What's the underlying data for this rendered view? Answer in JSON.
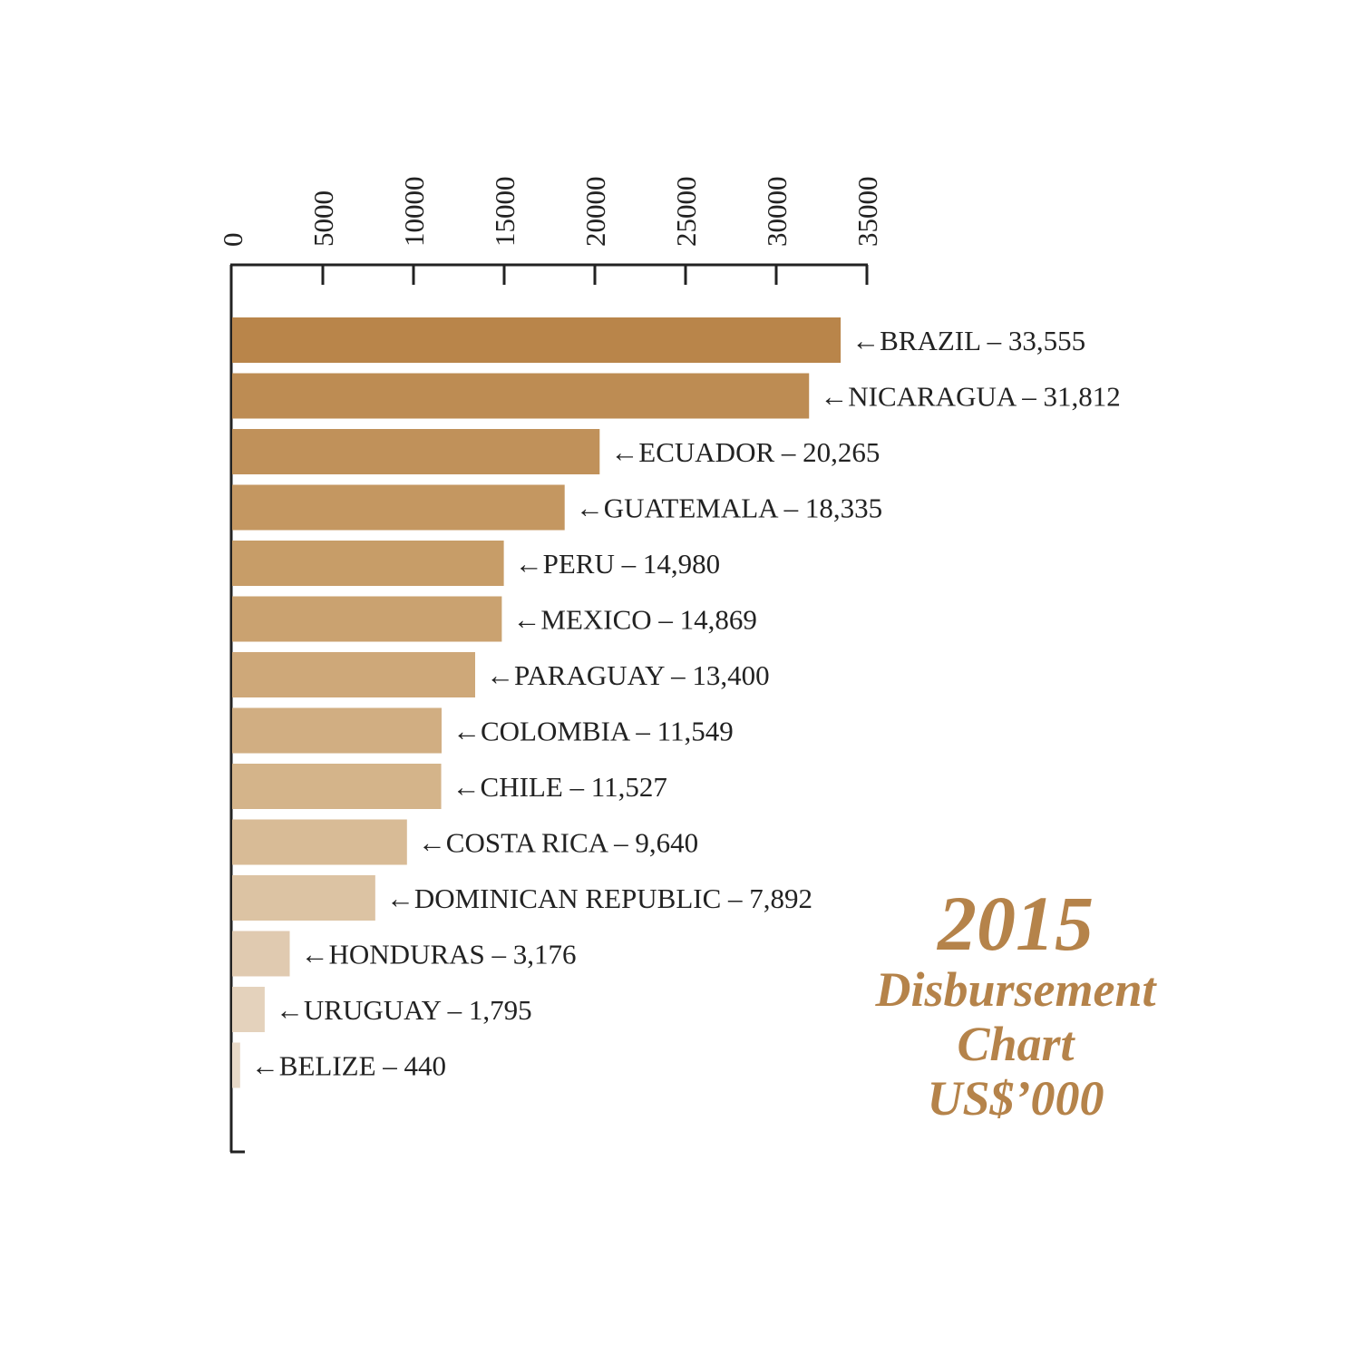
{
  "colors": {
    "title": "#b5834a",
    "bars": [
      "#b9854a",
      "#bd8c53",
      "#c0915a",
      "#c49761",
      "#c79d68",
      "#caa270",
      "#cea879",
      "#d1ae82",
      "#d4b48a",
      "#d8bb96",
      "#dcc3a3",
      "#e0cab0",
      "#e4d2bc",
      "#e8d9c8"
    ]
  },
  "title": {
    "year": "2015",
    "line1": "Disbursement",
    "line2": "Chart",
    "line3": "US$’000"
  },
  "chart_data": {
    "type": "bar",
    "orientation": "horizontal",
    "axis_position": "top",
    "xlim": [
      0,
      35000
    ],
    "ticks": [
      "0",
      "5000",
      "10000",
      "15000",
      "20000",
      "25000",
      "30000",
      "35000"
    ],
    "categories": [
      "BRAZIL",
      "NICARAGUA",
      "ECUADOR",
      "GUATEMALA",
      "PERU",
      "MEXICO",
      "PARAGUAY",
      "COLOMBIA",
      "CHILE",
      "COSTA RICA",
      "DOMINICAN REPUBLIC",
      "HONDURAS",
      "URUGUAY",
      "BELIZE"
    ],
    "values": [
      33555,
      31812,
      20265,
      18335,
      14980,
      14869,
      13400,
      11549,
      11527,
      9640,
      7892,
      3176,
      1795,
      440
    ],
    "value_labels": [
      "33,555",
      "31,812",
      "20,265",
      "18,335",
      "14,980",
      "14,869",
      "13,400",
      "11,549",
      "11,527",
      "9,640",
      "7,892",
      "3,176",
      "1,795",
      "440"
    ]
  }
}
